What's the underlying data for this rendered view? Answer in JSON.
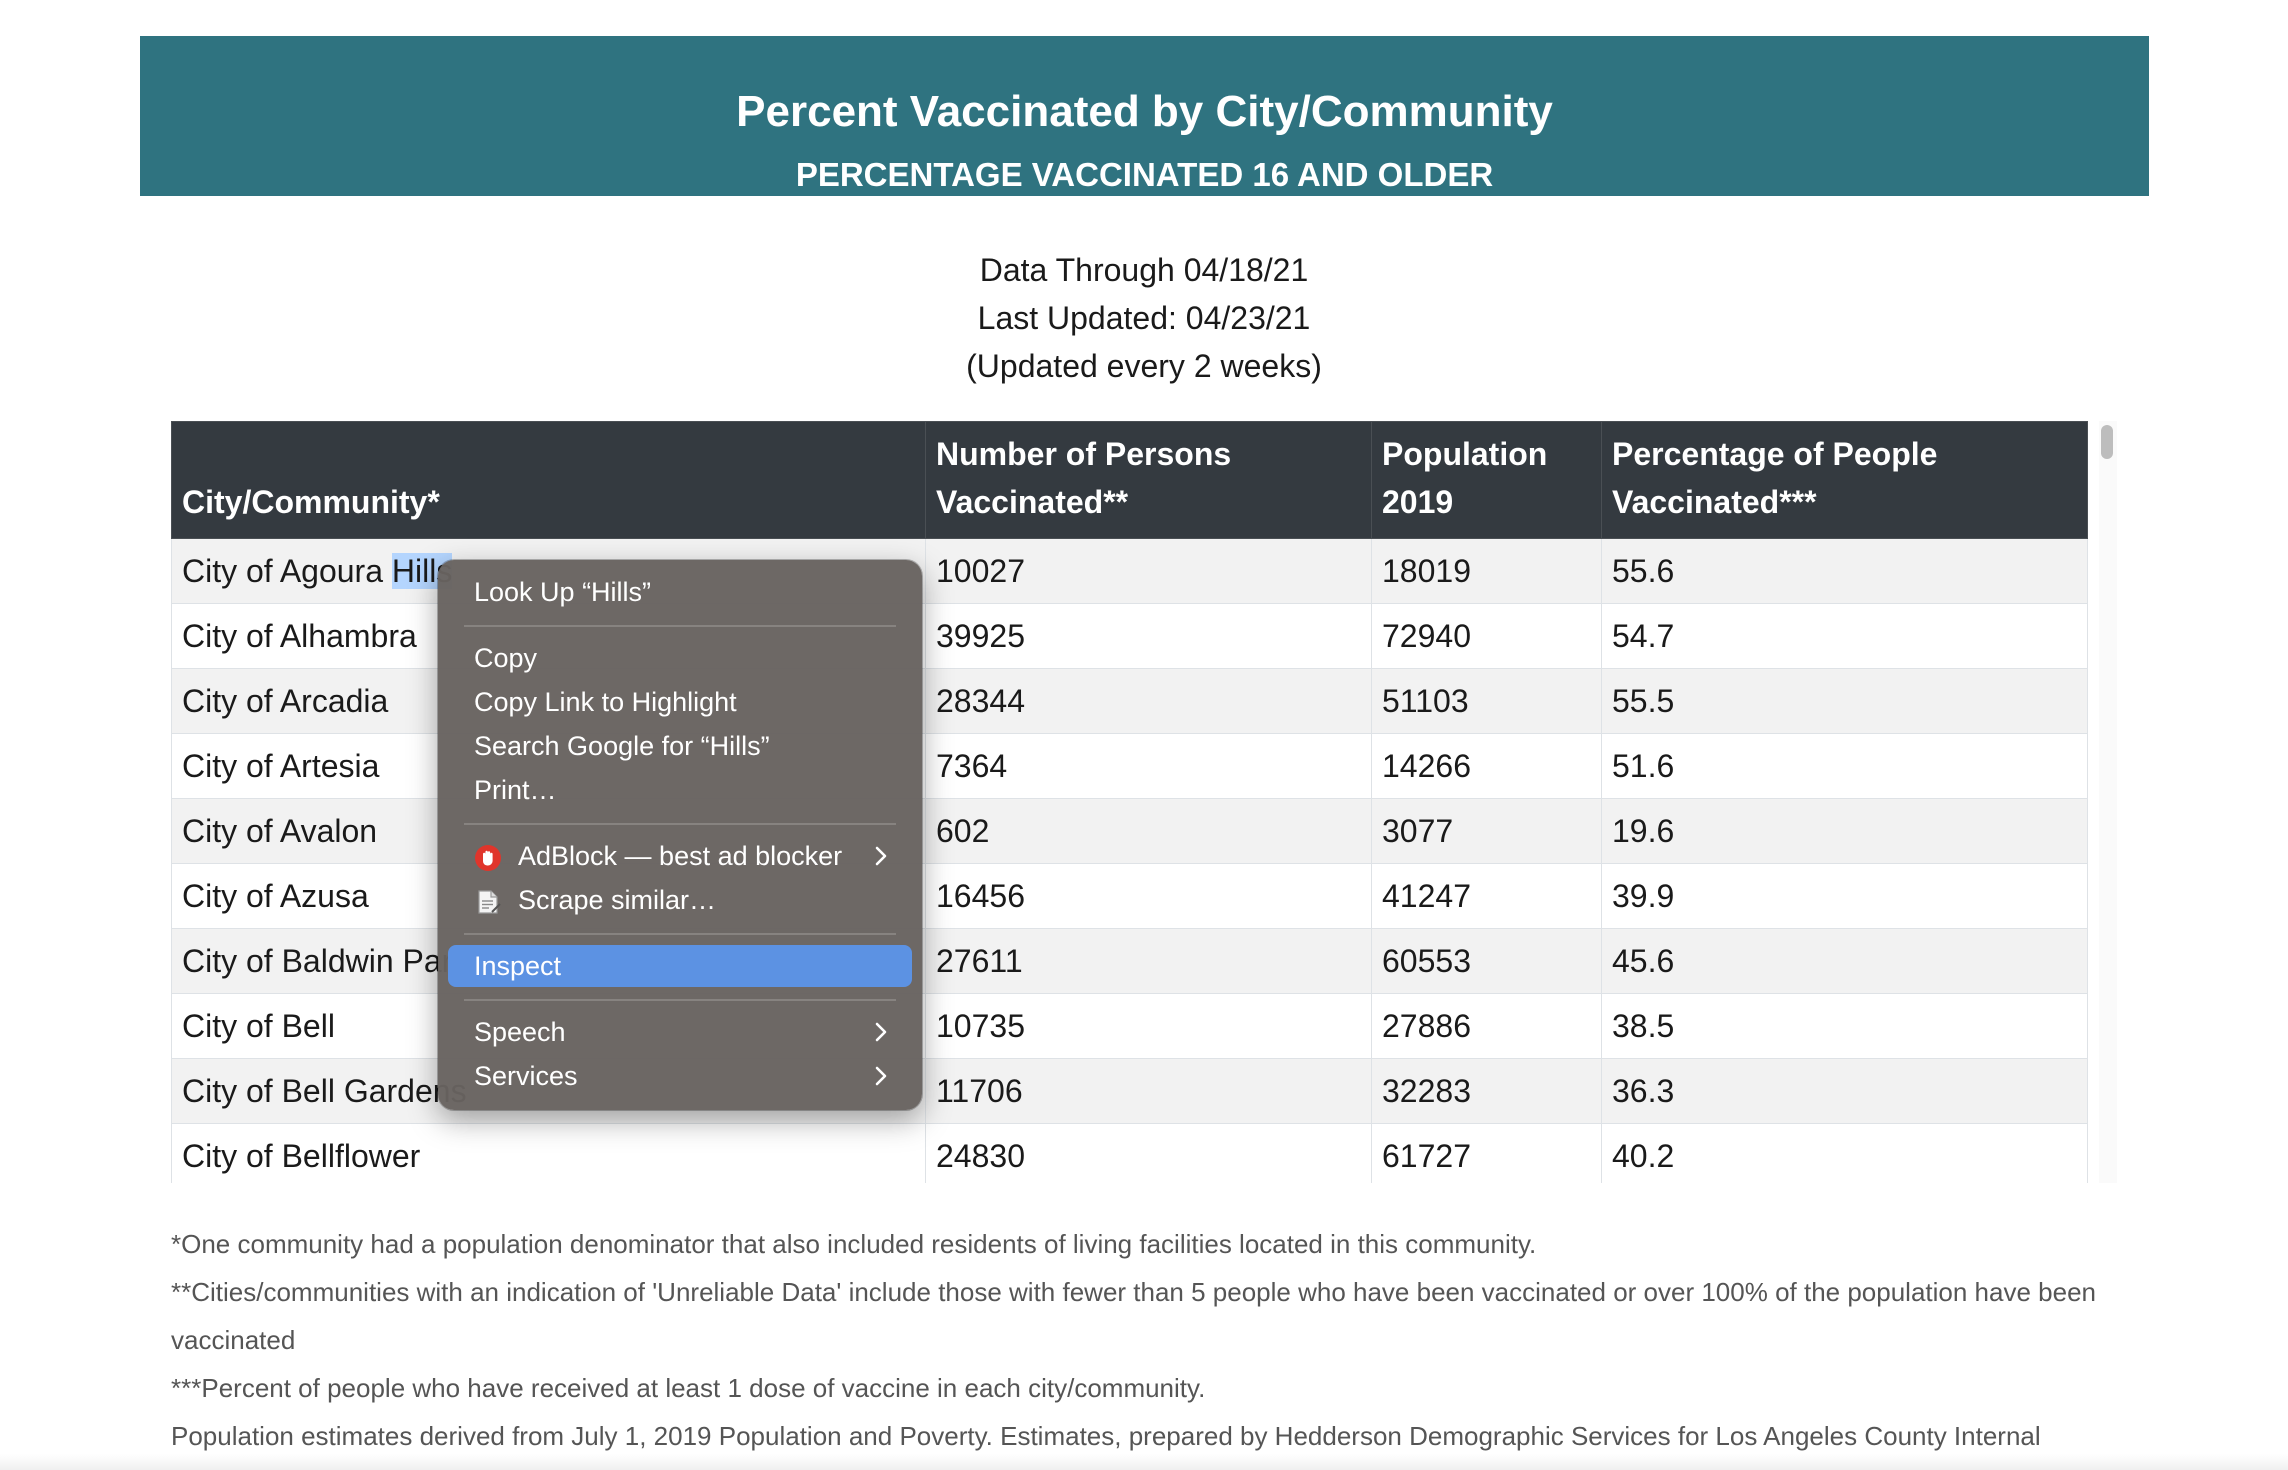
{
  "banner": {
    "title": "Percent Vaccinated by City/Community",
    "subtitle": "PERCENTAGE VACCINATED 16 AND OLDER"
  },
  "meta": {
    "data_through": "Data Through 04/18/21",
    "last_updated": "Last Updated: 04/23/21",
    "update_freq": "(Updated every 2 weeks)"
  },
  "table": {
    "headers": {
      "city": "City/Community*",
      "vaccinated": "Number of Persons Vaccinated**",
      "population": "Population 2019",
      "percentage": "Percentage of People Vaccinated***"
    },
    "rows": [
      {
        "city": "City of Agoura Hills",
        "vaccinated": "10027",
        "population": "18019",
        "percentage": "55.6"
      },
      {
        "city": "City of Alhambra",
        "vaccinated": "39925",
        "population": "72940",
        "percentage": "54.7"
      },
      {
        "city": "City of Arcadia",
        "vaccinated": "28344",
        "population": "51103",
        "percentage": "55.5"
      },
      {
        "city": "City of Artesia",
        "vaccinated": "7364",
        "population": "14266",
        "percentage": "51.6"
      },
      {
        "city": "City of Avalon",
        "vaccinated": "602",
        "population": "3077",
        "percentage": "19.6"
      },
      {
        "city": "City of Azusa",
        "vaccinated": "16456",
        "population": "41247",
        "percentage": "39.9"
      },
      {
        "city": "City of Baldwin Park",
        "vaccinated": "27611",
        "population": "60553",
        "percentage": "45.6"
      },
      {
        "city": "City of Bell",
        "vaccinated": "10735",
        "population": "27886",
        "percentage": "38.5"
      },
      {
        "city": "City of Bell Gardens",
        "vaccinated": "11706",
        "population": "32283",
        "percentage": "36.3"
      },
      {
        "city": "City of Bellflower",
        "vaccinated": "24830",
        "population": "61727",
        "percentage": "40.2"
      }
    ]
  },
  "selection": {
    "row0_prefix": "City of Agoura ",
    "row0_selected": "Hills"
  },
  "footnotes": {
    "note1": "*One community had a population denominator that also included residents of living facilities located in this community.",
    "note2": "**Cities/communities with an indication of 'Unreliable Data' include those with fewer than 5 people who have been vaccinated or over 100% of the population have been vaccinated",
    "note3": "***Percent of people who have received at least 1 dose of vaccine in each city/community.",
    "note4": "Population estimates derived from July 1, 2019 Population and Poverty. Estimates, prepared by Hedderson Demographic Services for Los Angeles County Internal"
  },
  "context_menu": {
    "look_up": "Look Up “Hills”",
    "copy": "Copy",
    "copy_link": "Copy Link to Highlight",
    "search_google": "Search Google for “Hills”",
    "print": "Print…",
    "adblock": "AdBlock — best ad blocker",
    "scrape": "Scrape similar…",
    "inspect": "Inspect",
    "speech": "Speech",
    "services": "Services"
  },
  "colors": {
    "banner_bg": "#2f7380",
    "header_bg": "#343a40",
    "menu_bg": "#686360",
    "menu_selected": "#5c92e3",
    "text_highlight": "#b4d5fe"
  },
  "icons": {
    "adblock": "adblock-hand-icon",
    "scrape": "scrape-document-icon",
    "submenu": "chevron-right-icon"
  }
}
